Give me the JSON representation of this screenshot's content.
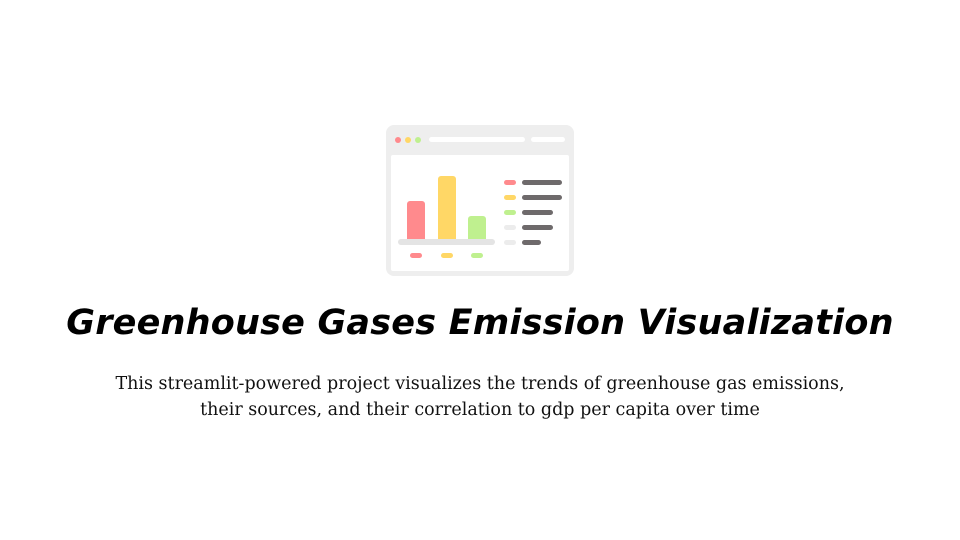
{
  "illustration": {
    "icon": "browser-bar-chart-icon",
    "colors": {
      "red": "#ff8a8d",
      "yellow": "#ffd766",
      "green": "#bff08f",
      "frame": "#eeeeee",
      "legend_text": "#6e6a6b"
    }
  },
  "title": "Greenhouse Gases Emission Visualization",
  "description": {
    "line1": "This streamlit-powered project visualizes the trends of greenhouse gas emissions,",
    "line2": "their sources, and their correlation to gdp per capita over time"
  }
}
